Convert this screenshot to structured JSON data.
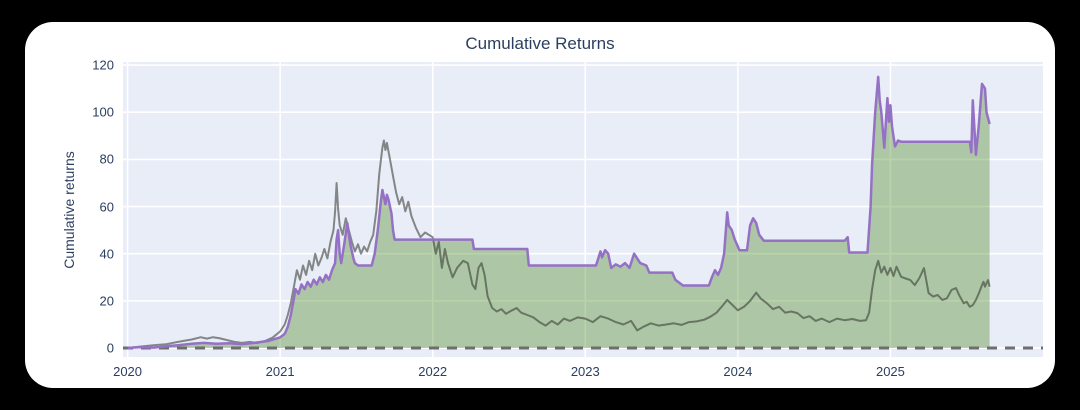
{
  "chart": {
    "title": "Cumulative Returns",
    "ylabel": "Cumulative returns"
  },
  "colors": {
    "page_background": "#000000",
    "card_background": "#ffffff",
    "plot_background": "#e8edf7",
    "gridline": "#ffffff",
    "text": "#2a3f5f",
    "purple_line": "#9571c5",
    "gray_line": "rgba(45,50,42,0.55)",
    "area_fill": "rgba(90,148,55,0.42)",
    "zero_dash_line": "#6e6e6e"
  },
  "chart_data": {
    "type": "line",
    "title": "Cumulative Returns",
    "xlabel": "",
    "ylabel": "Cumulative returns",
    "xlim": [
      2019.97,
      2026.0
    ],
    "ylim": [
      -3.8,
      121.3
    ],
    "xticks": [
      2020,
      2021,
      2022,
      2023,
      2024,
      2025
    ],
    "yticks": [
      0,
      20,
      40,
      60,
      80,
      100,
      120
    ],
    "grid": true,
    "legend": false,
    "baseline": {
      "y": 0,
      "style": "dashed"
    },
    "series": [
      {
        "name": "purple",
        "role": "cumulative-returns-filled-area",
        "fill": "tozeroy",
        "points": [
          [
            2020.0,
            0
          ],
          [
            2020.08,
            0.4
          ],
          [
            2020.17,
            0.2
          ],
          [
            2020.25,
            0.8
          ],
          [
            2020.33,
            1.2
          ],
          [
            2020.42,
            1.8
          ],
          [
            2020.5,
            2.2
          ],
          [
            2020.58,
            1.8
          ],
          [
            2020.67,
            2.0
          ],
          [
            2020.75,
            1.6
          ],
          [
            2020.83,
            2.2
          ],
          [
            2020.92,
            3.0
          ],
          [
            2021.0,
            4.5
          ],
          [
            2021.03,
            6
          ],
          [
            2021.05,
            9
          ],
          [
            2021.07,
            14
          ],
          [
            2021.09,
            21
          ],
          [
            2021.1,
            25
          ],
          [
            2021.12,
            23
          ],
          [
            2021.14,
            27
          ],
          [
            2021.16,
            25
          ],
          [
            2021.18,
            28
          ],
          [
            2021.2,
            26
          ],
          [
            2021.22,
            29
          ],
          [
            2021.24,
            27
          ],
          [
            2021.26,
            30
          ],
          [
            2021.28,
            28
          ],
          [
            2021.3,
            31
          ],
          [
            2021.32,
            29
          ],
          [
            2021.34,
            33
          ],
          [
            2021.36,
            36
          ],
          [
            2021.37,
            46
          ],
          [
            2021.38,
            50
          ],
          [
            2021.39,
            40
          ],
          [
            2021.4,
            36
          ],
          [
            2021.42,
            44
          ],
          [
            2021.44,
            53
          ],
          [
            2021.46,
            44
          ],
          [
            2021.48,
            38
          ],
          [
            2021.49,
            36
          ],
          [
            2021.51,
            35
          ],
          [
            2021.6,
            35
          ],
          [
            2021.62,
            40
          ],
          [
            2021.64,
            50
          ],
          [
            2021.66,
            62
          ],
          [
            2021.67,
            67
          ],
          [
            2021.68,
            64
          ],
          [
            2021.69,
            61
          ],
          [
            2021.7,
            65
          ],
          [
            2021.71,
            63
          ],
          [
            2021.72,
            60
          ],
          [
            2021.73,
            57
          ],
          [
            2021.74,
            50
          ],
          [
            2021.75,
            46
          ],
          [
            2022.26,
            46
          ],
          [
            2022.27,
            42
          ],
          [
            2022.62,
            42
          ],
          [
            2022.63,
            35
          ],
          [
            2023.07,
            35
          ],
          [
            2023.09,
            39
          ],
          [
            2023.1,
            41
          ],
          [
            2023.11,
            38.5
          ],
          [
            2023.13,
            41.5
          ],
          [
            2023.15,
            40
          ],
          [
            2023.17,
            34
          ],
          [
            2023.2,
            35.5
          ],
          [
            2023.23,
            34.5
          ],
          [
            2023.26,
            36
          ],
          [
            2023.29,
            34
          ],
          [
            2023.32,
            40
          ],
          [
            2023.34,
            38
          ],
          [
            2023.36,
            36
          ],
          [
            2023.4,
            35
          ],
          [
            2023.42,
            32
          ],
          [
            2023.57,
            32
          ],
          [
            2023.59,
            29
          ],
          [
            2023.62,
            27.5
          ],
          [
            2023.64,
            26.5
          ],
          [
            2023.81,
            26.5
          ],
          [
            2023.83,
            30
          ],
          [
            2023.85,
            33
          ],
          [
            2023.87,
            31
          ],
          [
            2023.89,
            34
          ],
          [
            2023.91,
            40
          ],
          [
            2023.93,
            57.5
          ],
          [
            2023.94,
            52
          ],
          [
            2023.96,
            50
          ],
          [
            2023.98,
            46
          ],
          [
            2024.0,
            43
          ],
          [
            2024.01,
            41.5
          ],
          [
            2024.06,
            41.5
          ],
          [
            2024.08,
            52
          ],
          [
            2024.1,
            55
          ],
          [
            2024.12,
            53
          ],
          [
            2024.14,
            48
          ],
          [
            2024.17,
            45.5
          ],
          [
            2024.7,
            45.5
          ],
          [
            2024.72,
            47
          ],
          [
            2024.73,
            40.5
          ],
          [
            2024.85,
            40.5
          ],
          [
            2024.87,
            60
          ],
          [
            2024.88,
            78
          ],
          [
            2024.9,
            100
          ],
          [
            2024.92,
            115
          ],
          [
            2024.93,
            105
          ],
          [
            2024.94,
            100
          ],
          [
            2024.96,
            85
          ],
          [
            2024.98,
            106
          ],
          [
            2024.99,
            96
          ],
          [
            2025.0,
            103
          ],
          [
            2025.01,
            94
          ],
          [
            2025.03,
            85.5
          ],
          [
            2025.05,
            88
          ],
          [
            2025.07,
            87.5
          ],
          [
            2025.52,
            87.5
          ],
          [
            2025.53,
            83
          ],
          [
            2025.54,
            105
          ],
          [
            2025.56,
            82
          ],
          [
            2025.58,
            95
          ],
          [
            2025.6,
            112
          ],
          [
            2025.62,
            110
          ],
          [
            2025.63,
            100
          ],
          [
            2025.65,
            95
          ]
        ]
      },
      {
        "name": "gray",
        "role": "benchmark-line",
        "fill": "none",
        "points": [
          [
            2020.0,
            0
          ],
          [
            2020.08,
            0.6
          ],
          [
            2020.17,
            1.2
          ],
          [
            2020.25,
            1.6
          ],
          [
            2020.33,
            2.6
          ],
          [
            2020.42,
            3.6
          ],
          [
            2020.48,
            4.6
          ],
          [
            2020.52,
            4.0
          ],
          [
            2020.56,
            4.6
          ],
          [
            2020.6,
            4.2
          ],
          [
            2020.65,
            3.4
          ],
          [
            2020.7,
            2.6
          ],
          [
            2020.75,
            2.2
          ],
          [
            2020.8,
            2.6
          ],
          [
            2020.85,
            2.2
          ],
          [
            2020.9,
            3.0
          ],
          [
            2020.95,
            4.4
          ],
          [
            2021.0,
            7
          ],
          [
            2021.03,
            10
          ],
          [
            2021.05,
            14
          ],
          [
            2021.07,
            19
          ],
          [
            2021.09,
            26
          ],
          [
            2021.11,
            33
          ],
          [
            2021.13,
            29
          ],
          [
            2021.15,
            35
          ],
          [
            2021.17,
            31
          ],
          [
            2021.19,
            37
          ],
          [
            2021.21,
            33
          ],
          [
            2021.23,
            40
          ],
          [
            2021.25,
            35
          ],
          [
            2021.27,
            38
          ],
          [
            2021.29,
            42
          ],
          [
            2021.31,
            38
          ],
          [
            2021.33,
            45
          ],
          [
            2021.35,
            50
          ],
          [
            2021.36,
            58
          ],
          [
            2021.37,
            70
          ],
          [
            2021.38,
            59
          ],
          [
            2021.39,
            52
          ],
          [
            2021.41,
            48
          ],
          [
            2021.43,
            55
          ],
          [
            2021.45,
            50
          ],
          [
            2021.47,
            45
          ],
          [
            2021.49,
            41
          ],
          [
            2021.51,
            44
          ],
          [
            2021.53,
            40
          ],
          [
            2021.55,
            43
          ],
          [
            2021.57,
            41
          ],
          [
            2021.59,
            45
          ],
          [
            2021.61,
            48
          ],
          [
            2021.63,
            58
          ],
          [
            2021.65,
            74
          ],
          [
            2021.67,
            85
          ],
          [
            2021.68,
            88
          ],
          [
            2021.69,
            84
          ],
          [
            2021.7,
            87
          ],
          [
            2021.72,
            80
          ],
          [
            2021.74,
            73
          ],
          [
            2021.76,
            66
          ],
          [
            2021.78,
            61
          ],
          [
            2021.8,
            64
          ],
          [
            2021.82,
            58
          ],
          [
            2021.84,
            62
          ],
          [
            2021.86,
            56
          ],
          [
            2021.89,
            51
          ],
          [
            2021.92,
            47
          ],
          [
            2021.95,
            49
          ],
          [
            2022.0,
            47
          ],
          [
            2022.02,
            40
          ],
          [
            2022.04,
            45
          ],
          [
            2022.06,
            34
          ],
          [
            2022.08,
            42
          ],
          [
            2022.1,
            36
          ],
          [
            2022.13,
            30
          ],
          [
            2022.16,
            34
          ],
          [
            2022.2,
            37
          ],
          [
            2022.23,
            36
          ],
          [
            2022.26,
            27
          ],
          [
            2022.28,
            25
          ],
          [
            2022.3,
            34
          ],
          [
            2022.32,
            36
          ],
          [
            2022.34,
            31
          ],
          [
            2022.36,
            22
          ],
          [
            2022.39,
            17
          ],
          [
            2022.42,
            15.5
          ],
          [
            2022.45,
            16.5
          ],
          [
            2022.48,
            14.5
          ],
          [
            2022.52,
            16
          ],
          [
            2022.55,
            17
          ],
          [
            2022.58,
            15
          ],
          [
            2022.62,
            14
          ],
          [
            2022.66,
            13
          ],
          [
            2022.7,
            11
          ],
          [
            2022.74,
            9.5
          ],
          [
            2022.78,
            11.5
          ],
          [
            2022.82,
            10
          ],
          [
            2022.86,
            12.5
          ],
          [
            2022.9,
            11.5
          ],
          [
            2022.95,
            13
          ],
          [
            2023.0,
            12.5
          ],
          [
            2023.05,
            11
          ],
          [
            2023.1,
            13.5
          ],
          [
            2023.15,
            12.5
          ],
          [
            2023.2,
            11
          ],
          [
            2023.25,
            10
          ],
          [
            2023.3,
            11.5
          ],
          [
            2023.34,
            7.5
          ],
          [
            2023.38,
            9
          ],
          [
            2023.43,
            10.5
          ],
          [
            2023.48,
            9.5
          ],
          [
            2023.53,
            10
          ],
          [
            2023.58,
            10.5
          ],
          [
            2023.63,
            9.8
          ],
          [
            2023.68,
            11
          ],
          [
            2023.73,
            11.3
          ],
          [
            2023.78,
            12
          ],
          [
            2023.82,
            13.3
          ],
          [
            2023.86,
            15
          ],
          [
            2023.9,
            18
          ],
          [
            2023.93,
            20.4
          ],
          [
            2023.96,
            18.5
          ],
          [
            2024.0,
            16
          ],
          [
            2024.04,
            17.5
          ],
          [
            2024.08,
            20
          ],
          [
            2024.12,
            23.5
          ],
          [
            2024.15,
            21
          ],
          [
            2024.19,
            19
          ],
          [
            2024.23,
            16.5
          ],
          [
            2024.27,
            17.5
          ],
          [
            2024.31,
            15
          ],
          [
            2024.35,
            15.5
          ],
          [
            2024.39,
            14.8
          ],
          [
            2024.43,
            12.7
          ],
          [
            2024.47,
            13.5
          ],
          [
            2024.51,
            11.5
          ],
          [
            2024.55,
            12.5
          ],
          [
            2024.6,
            11
          ],
          [
            2024.65,
            12.5
          ],
          [
            2024.7,
            11.8
          ],
          [
            2024.75,
            12.3
          ],
          [
            2024.8,
            11.5
          ],
          [
            2024.84,
            11.8
          ],
          [
            2024.86,
            15
          ],
          [
            2024.88,
            25
          ],
          [
            2024.9,
            33
          ],
          [
            2024.92,
            37
          ],
          [
            2024.94,
            32
          ],
          [
            2024.96,
            34.5
          ],
          [
            2024.98,
            31
          ],
          [
            2025.0,
            34
          ],
          [
            2025.02,
            30.5
          ],
          [
            2025.04,
            34.5
          ],
          [
            2025.07,
            30.2
          ],
          [
            2025.1,
            29.5
          ],
          [
            2025.13,
            28.8
          ],
          [
            2025.16,
            26.7
          ],
          [
            2025.19,
            29.7
          ],
          [
            2025.22,
            33.9
          ],
          [
            2025.25,
            23.3
          ],
          [
            2025.28,
            21.8
          ],
          [
            2025.31,
            22.5
          ],
          [
            2025.34,
            20.4
          ],
          [
            2025.37,
            21.1
          ],
          [
            2025.4,
            24.6
          ],
          [
            2025.43,
            25.4
          ],
          [
            2025.45,
            22.5
          ],
          [
            2025.48,
            19
          ],
          [
            2025.5,
            19.6
          ],
          [
            2025.52,
            17.5
          ],
          [
            2025.54,
            18.2
          ],
          [
            2025.56,
            20.4
          ],
          [
            2025.58,
            23.3
          ],
          [
            2025.6,
            26.7
          ],
          [
            2025.61,
            28.1
          ],
          [
            2025.62,
            26
          ],
          [
            2025.63,
            27.5
          ],
          [
            2025.64,
            28.8
          ],
          [
            2025.65,
            26
          ]
        ]
      }
    ]
  }
}
